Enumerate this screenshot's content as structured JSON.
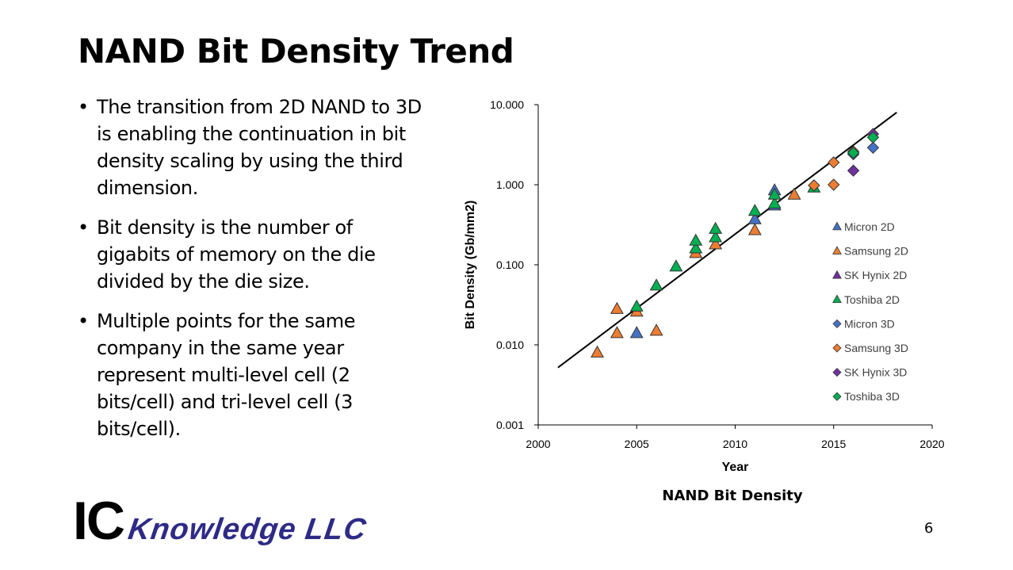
{
  "slide": {
    "title": "NAND Bit Density Trend",
    "bullets": [
      "The transition from 2D NAND to 3D is enabling the continuation in bit density scaling by using the third dimension.",
      " Bit density is the number of gigabits of memory on the die divided by the die size.",
      "Multiple points for the same company in the same year represent multi-level cell (2 bits/cell) and tri-level cell (3 bits/cell)."
    ],
    "chart_caption": "NAND Bit Density",
    "logo_text_ic": "IC",
    "logo_text_knowledge": "Knowledge LLC",
    "page_number": "6"
  },
  "chart_data": {
    "type": "scatter",
    "title": "",
    "xlabel": "Year",
    "ylabel": "Bit Density (Gb/mm2)",
    "xlim": [
      2000,
      2020
    ],
    "ylim": [
      0.001,
      10
    ],
    "y_scale": "log",
    "x_ticks": [
      "2000",
      "2005",
      "2010",
      "2015",
      "2020"
    ],
    "y_ticks": [
      "0.001",
      "0.010",
      "0.100",
      "1.000",
      "10.000"
    ],
    "grid": false,
    "legend_position": "right",
    "series": [
      {
        "name": "Micron 2D",
        "marker": "triangle",
        "color": "#4472c4",
        "points": [
          [
            2005,
            0.014
          ],
          [
            2011,
            0.37
          ],
          [
            2012,
            0.55
          ],
          [
            2012,
            0.85
          ]
        ]
      },
      {
        "name": "Samsung 2D",
        "marker": "triangle",
        "color": "#ed7d31",
        "points": [
          [
            2003,
            0.008
          ],
          [
            2004,
            0.014
          ],
          [
            2004,
            0.028
          ],
          [
            2005,
            0.026
          ],
          [
            2006,
            0.015
          ],
          [
            2008,
            0.14
          ],
          [
            2009,
            0.18
          ],
          [
            2011,
            0.27
          ],
          [
            2013,
            0.75
          ]
        ]
      },
      {
        "name": "SK Hynix 2D",
        "marker": "triangle",
        "color": "#7030a0",
        "points": []
      },
      {
        "name": "Toshiba 2D",
        "marker": "triangle",
        "color": "#00b050",
        "points": [
          [
            2005,
            0.03
          ],
          [
            2006,
            0.055
          ],
          [
            2007,
            0.095
          ],
          [
            2008,
            0.16
          ],
          [
            2008,
            0.2
          ],
          [
            2009,
            0.22
          ],
          [
            2009,
            0.28
          ],
          [
            2011,
            0.47
          ],
          [
            2012,
            0.58
          ],
          [
            2012,
            0.75
          ],
          [
            2014,
            0.92
          ]
        ]
      },
      {
        "name": "Micron 3D",
        "marker": "diamond",
        "color": "#4472c4",
        "points": [
          [
            2016,
            2.4
          ],
          [
            2017,
            2.9
          ]
        ]
      },
      {
        "name": "Samsung 3D",
        "marker": "diamond",
        "color": "#ed7d31",
        "points": [
          [
            2014,
            0.98
          ],
          [
            2015,
            1.0
          ],
          [
            2015,
            1.9
          ],
          [
            2016,
            2.6
          ]
        ]
      },
      {
        "name": "SK Hynix 3D",
        "marker": "diamond",
        "color": "#7030a0",
        "points": [
          [
            2016,
            1.5
          ],
          [
            2017,
            4.3
          ]
        ]
      },
      {
        "name": "Toshiba 3D",
        "marker": "diamond",
        "color": "#00b050",
        "points": [
          [
            2016,
            2.5
          ],
          [
            2017,
            3.9
          ]
        ]
      }
    ],
    "trend_line": {
      "color": "#000000",
      "points": [
        [
          2001,
          0.0052
        ],
        [
          2018.2,
          8.0
        ]
      ]
    }
  }
}
